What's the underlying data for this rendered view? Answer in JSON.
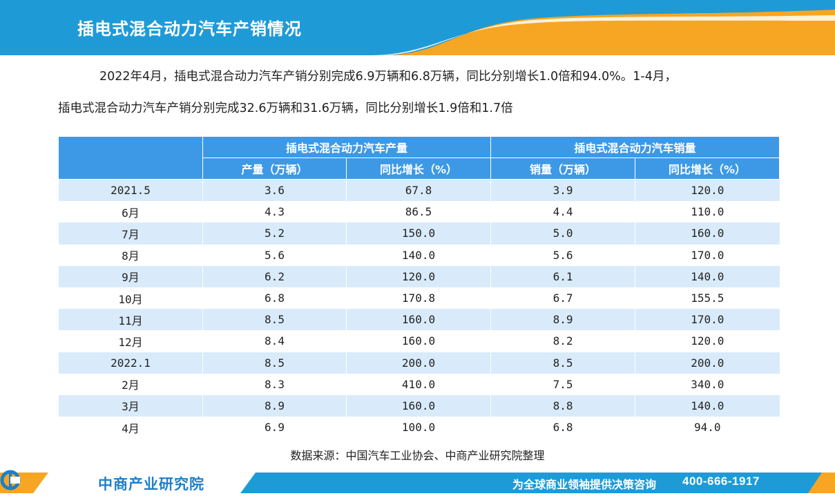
{
  "header": {
    "title": "插电式混合动力汽车产销情况",
    "colors": {
      "blue": "#1e9bd7",
      "orange": "#f6a623"
    }
  },
  "intro": {
    "line1": "2022年4月，插电式混合动力汽车产销分别完成6.9万辆和6.8万辆，同比分别增长1.0倍和94.0%。1-4月，",
    "line2": "插电式混合动力汽车产销分别完成32.6万辆和31.6万辆，同比分别增长1.9倍和1.7倍"
  },
  "table": {
    "group_headers": [
      "插电式混合动力汽车产量",
      "插电式混合动力汽车销量"
    ],
    "sub_headers": [
      "产量（万辆）",
      "同比增长（%）",
      "销量（万辆）",
      "同比增长（%）"
    ],
    "rows": [
      {
        "label": "2021.5",
        "cells": [
          "3.6",
          "67.8",
          "3.9",
          "120.0"
        ]
      },
      {
        "label": "6月",
        "cells": [
          "4.3",
          "86.5",
          "4.4",
          "110.0"
        ]
      },
      {
        "label": "7月",
        "cells": [
          "5.2",
          "150.0",
          "5.0",
          "160.0"
        ]
      },
      {
        "label": "8月",
        "cells": [
          "5.6",
          "140.0",
          "5.6",
          "170.0"
        ]
      },
      {
        "label": "9月",
        "cells": [
          "6.2",
          "120.0",
          "6.1",
          "140.0"
        ]
      },
      {
        "label": "10月",
        "cells": [
          "6.8",
          "170.8",
          "6.7",
          "155.5"
        ]
      },
      {
        "label": "11月",
        "cells": [
          "8.5",
          "160.0",
          "8.9",
          "170.0"
        ]
      },
      {
        "label": "12月",
        "cells": [
          "8.4",
          "160.0",
          "8.2",
          "120.0"
        ]
      },
      {
        "label": "2022.1",
        "cells": [
          "8.5",
          "200.0",
          "8.5",
          "200.0"
        ]
      },
      {
        "label": "2月",
        "cells": [
          "8.3",
          "410.0",
          "7.5",
          "340.0"
        ]
      },
      {
        "label": "3月",
        "cells": [
          "8.9",
          "160.0",
          "8.8",
          "140.0"
        ]
      },
      {
        "label": "4月",
        "cells": [
          "6.9",
          "100.0",
          "6.8",
          "94.0"
        ]
      }
    ],
    "colors": {
      "header_bg": "#3d99e6",
      "stripe": "#d9ebfb"
    }
  },
  "source": "数据来源：中国汽车工业协会、中商产业研究院整理",
  "footer": {
    "logo_text": "中商产业研究院",
    "slogan": "为全球商业领袖提供决策咨询",
    "phone": "400-666-1917"
  }
}
